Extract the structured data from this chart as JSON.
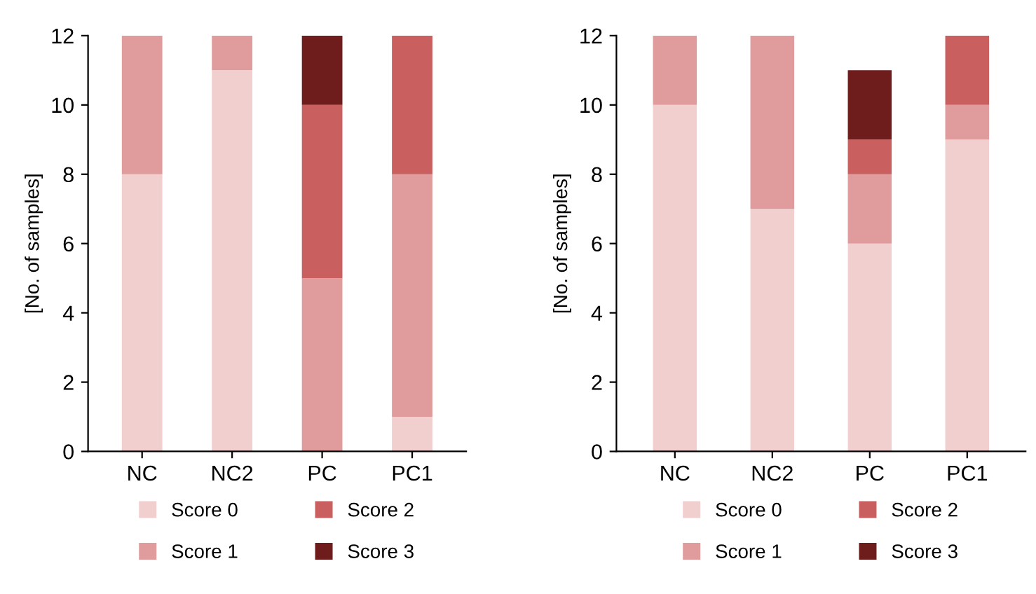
{
  "chart_data": [
    {
      "type": "bar",
      "stacked": true,
      "categories": [
        "NC",
        "NC2",
        "PC",
        "PC1"
      ],
      "ylabel": "[No. of samples]",
      "ylim": [
        0,
        12
      ],
      "yticks": [
        0,
        2,
        4,
        6,
        8,
        10,
        12
      ],
      "grid": false,
      "legend": "bottom",
      "series": [
        {
          "name": "Score 0",
          "color": "#f2cfcf",
          "values": [
            8,
            11,
            0,
            1
          ]
        },
        {
          "name": "Score 1",
          "color": "#e09c9c",
          "values": [
            4,
            1,
            5,
            7
          ]
        },
        {
          "name": "Score 2",
          "color": "#c95f5f",
          "values": [
            0,
            0,
            5,
            4
          ]
        },
        {
          "name": "Score 3",
          "color": "#6e1c1c",
          "values": [
            0,
            0,
            2,
            0
          ]
        }
      ]
    },
    {
      "type": "bar",
      "stacked": true,
      "categories": [
        "NC",
        "NC2",
        "PC",
        "PC1"
      ],
      "ylabel": "[No. of samples]",
      "ylim": [
        0,
        12
      ],
      "yticks": [
        0,
        2,
        4,
        6,
        8,
        10,
        12
      ],
      "grid": false,
      "legend": "bottom",
      "series": [
        {
          "name": "Score 0",
          "color": "#f2cfcf",
          "values": [
            10,
            7,
            6,
            9
          ]
        },
        {
          "name": "Score 1",
          "color": "#e09c9c",
          "values": [
            2,
            5,
            2,
            1
          ]
        },
        {
          "name": "Score 2",
          "color": "#c95f5f",
          "values": [
            0,
            0,
            1,
            2
          ]
        },
        {
          "name": "Score 3",
          "color": "#6e1c1c",
          "values": [
            0,
            0,
            2,
            0
          ]
        }
      ]
    }
  ]
}
